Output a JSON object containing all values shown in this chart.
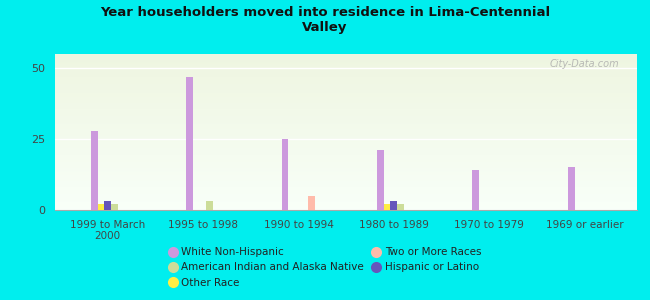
{
  "title": "Year householders moved into residence in Lima-Centennial\nValley",
  "categories": [
    "1999 to March\n2000",
    "1995 to 1998",
    "1990 to 1994",
    "1980 to 1989",
    "1970 to 1979",
    "1969 or earlier"
  ],
  "series": {
    "White Non-Hispanic": [
      28,
      47,
      25,
      21,
      14,
      15
    ],
    "Other Race": [
      2,
      0,
      0,
      2,
      0,
      0
    ],
    "Hispanic or Latino": [
      3,
      0,
      0,
      3,
      0,
      0
    ],
    "American Indian and Alaska Native": [
      2,
      3,
      0,
      2,
      0,
      0
    ],
    "Two or More Races": [
      0,
      0,
      5,
      0,
      0,
      0
    ]
  },
  "colors": {
    "White Non-Hispanic": "#cc99dd",
    "Other Race": "#ffee44",
    "Hispanic or Latino": "#6655bb",
    "American Indian and Alaska Native": "#ccdd99",
    "Two or More Races": "#ffbbaa"
  },
  "bar_width": 0.07,
  "ylim": [
    0,
    55
  ],
  "yticks": [
    0,
    25,
    50
  ],
  "background_top": "#eef5e0",
  "background_bottom": "#f8fff8",
  "outer_bg": "#00eeee",
  "watermark": "City-Data.com",
  "legend_items": [
    [
      "White Non-Hispanic",
      "#cc99dd"
    ],
    [
      "American Indian and Alaska Native",
      "#ccdd99"
    ],
    [
      "Other Race",
      "#ffee44"
    ],
    [
      "Two or More Races",
      "#ffbbaa"
    ],
    [
      "Hispanic or Latino",
      "#6655bb"
    ]
  ]
}
